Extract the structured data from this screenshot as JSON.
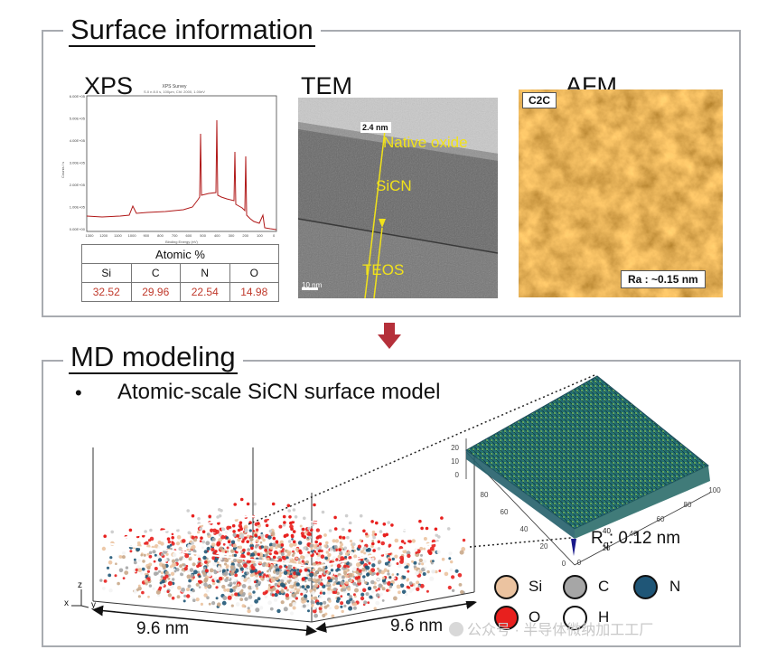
{
  "surface_panel": {
    "title": "Surface information",
    "xps": {
      "label": "XPS",
      "plot_title": "XPS Survey",
      "plot_subtitle": "S.0 n 8.0 s, 100μm, Chl: 2000, 1.00eV",
      "x_axis_label": "Binding Energy (eV)",
      "y_axis_label": "Counts / s",
      "y_ticks": [
        "6.00E+05",
        "5.00E+05",
        "4.00E+05",
        "3.00E+05",
        "2.00E+05",
        "1.00E+05",
        "0.00E+00"
      ],
      "x_ticks": [
        "1300",
        "1200",
        "1100",
        "1000",
        "900",
        "800",
        "700",
        "600",
        "500",
        "400",
        "300",
        "200",
        "100",
        "0"
      ],
      "table": {
        "header": "Atomic %",
        "elements": [
          "Si",
          "C",
          "N",
          "O"
        ],
        "values": [
          "32.52",
          "29.96",
          "22.54",
          "14.98"
        ]
      }
    },
    "tem": {
      "label": "TEM",
      "thickness": "2.4 nm",
      "native_oxide": "Native oxide",
      "sicn": "SiCN",
      "teos": "TEOS",
      "scale_bar": "10 nm"
    },
    "afm": {
      "label": "AFM",
      "tag": "C2C",
      "roughness": "Ra : ~0.15 nm"
    }
  },
  "md_panel": {
    "title": "MD modeling",
    "bullet": "•",
    "bullet_text": "Atomic-scale SiCN surface model",
    "dim_x": "9.6 nm",
    "dim_y": "9.6 nm",
    "axes": {
      "z": "z",
      "x": "x",
      "y": "y"
    },
    "roughness_label": "R",
    "roughness_sub": "q",
    "roughness_value": ": 0.12 nm",
    "surf_z_ticks": [
      "20",
      "10",
      "0"
    ],
    "surf_y_ticks": [
      "80",
      "60",
      "40",
      "20",
      "0"
    ],
    "surf_x_ticks": [
      "100",
      "80",
      "60",
      "40",
      "20",
      "0"
    ],
    "surf_small_tick": "40",
    "legend": [
      {
        "label": "Si",
        "color": "#ebc3a0"
      },
      {
        "label": "C",
        "color": "#a6a6a6"
      },
      {
        "label": "N",
        "color": "#1f5677"
      },
      {
        "label": "O",
        "color": "#e8201e"
      },
      {
        "label": "H",
        "color": "#ffffff"
      }
    ]
  },
  "watermark": "公众号 · 半导体微纳加工工厂",
  "colors": {
    "panel_border": "#a8abb0",
    "arrow": "#b5303a",
    "xps_line": "#b01818",
    "tem_text": "#f1e21a"
  }
}
